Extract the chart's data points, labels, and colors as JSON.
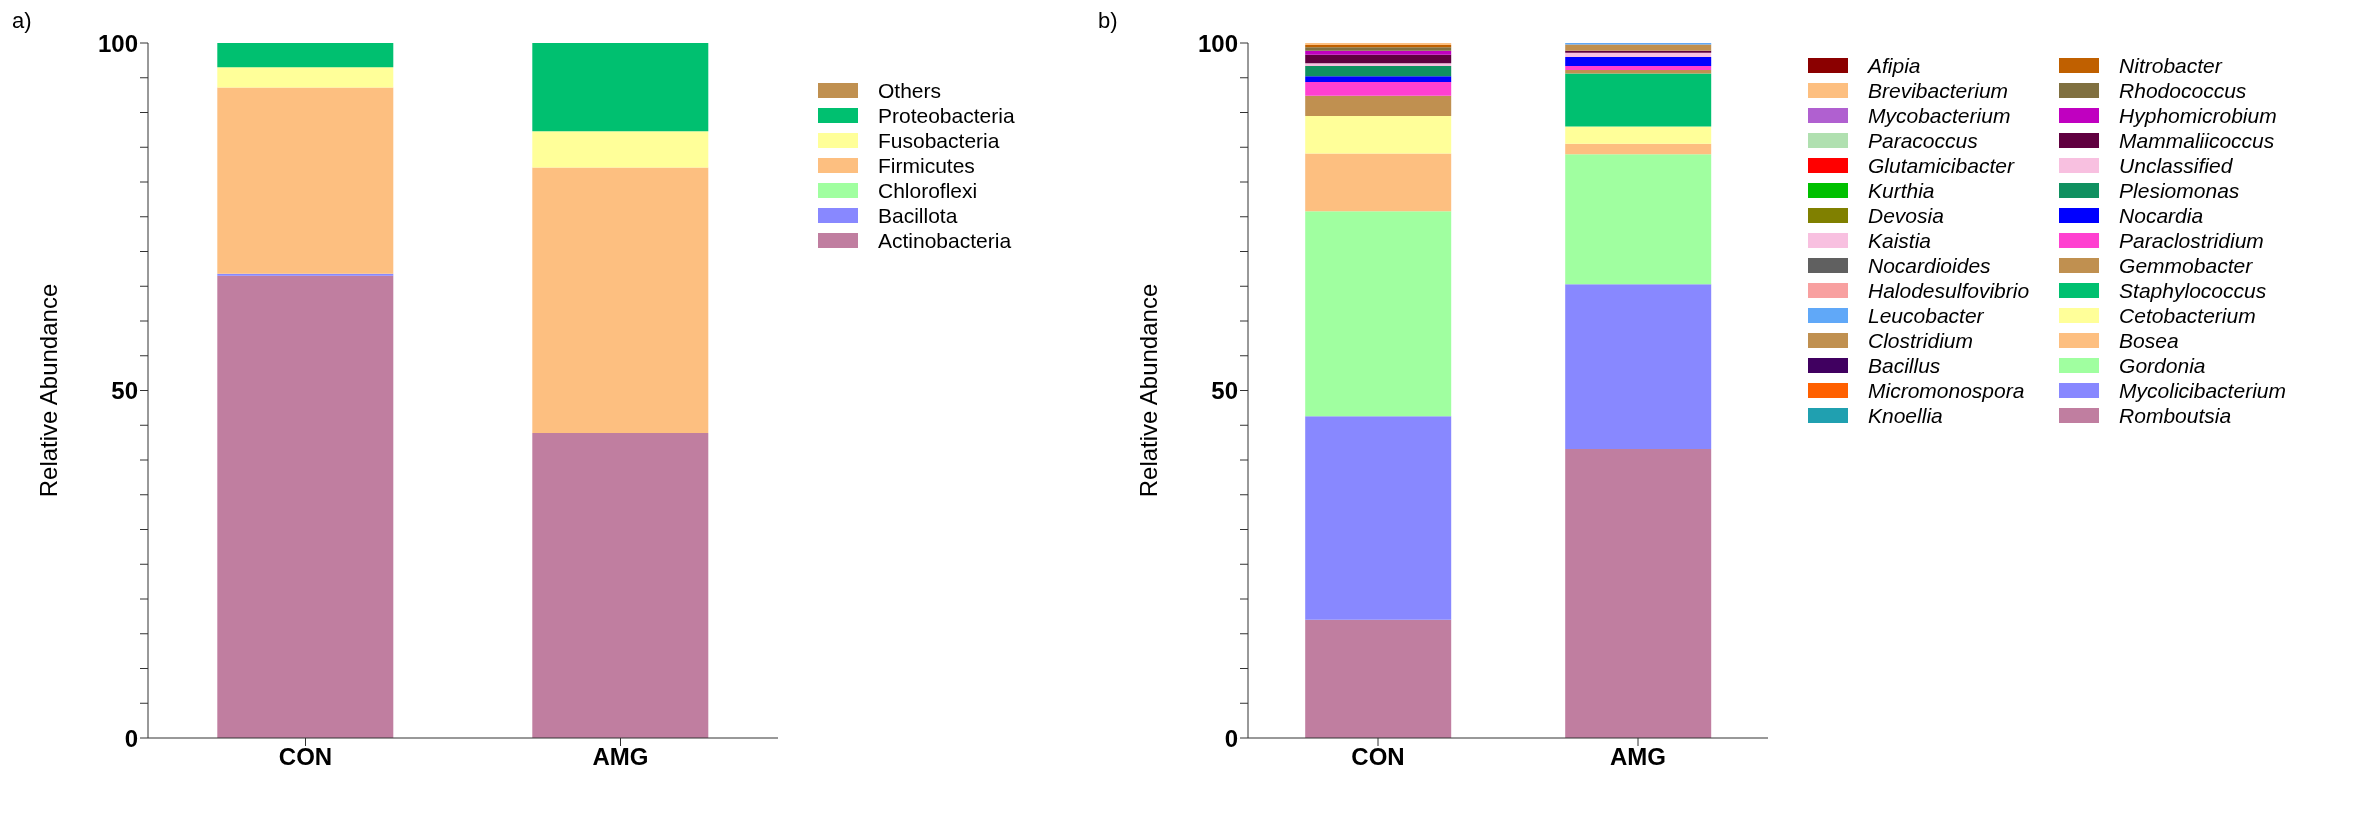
{
  "chart_data": [
    {
      "type": "bar",
      "stacked": true,
      "title": "a)",
      "ylabel": "Relative Abundance",
      "categories": [
        "CON",
        "AMG"
      ],
      "ylim": [
        0,
        100
      ],
      "legend": "right",
      "yticks": [
        0,
        {
          "value": 5,
          "label": null
        },
        {
          "value": 10,
          "label": null
        },
        {
          "value": 15,
          "label": null
        },
        {
          "value": 20,
          "label": null
        },
        {
          "value": 25,
          "label": null
        },
        {
          "value": 30,
          "label": null
        },
        {
          "value": 35,
          "label": null
        },
        {
          "value": 40,
          "label": null
        },
        {
          "value": 45,
          "label": null
        },
        50,
        {
          "value": 55,
          "label": null
        },
        {
          "value": 60,
          "label": null
        },
        {
          "value": 65,
          "label": null
        },
        {
          "value": 70,
          "label": null
        },
        {
          "value": 75,
          "label": null
        },
        {
          "value": 80,
          "label": null
        },
        {
          "value": 85,
          "label": null
        },
        {
          "value": 90,
          "label": null
        },
        {
          "value": 95,
          "label": null
        },
        100
      ],
      "series": [
        {
          "name": "Actinobacteria",
          "color": "#c07ea0",
          "values": [
            66.5,
            43.9
          ]
        },
        {
          "name": "Bacillota",
          "color": "#8888ff",
          "values": [
            0.3,
            0
          ]
        },
        {
          "name": "Chloroflexi",
          "color": "#a0ffa0",
          "values": [
            0,
            0
          ]
        },
        {
          "name": "Firmicutes",
          "color": "#fdbf80",
          "values": [
            26.8,
            38.2
          ]
        },
        {
          "name": "Fusobacteria",
          "color": "#ffff99",
          "values": [
            2.9,
            5.2
          ]
        },
        {
          "name": "Proteobacteria",
          "color": "#00c070",
          "values": [
            3.5,
            12.7
          ]
        },
        {
          "name": "Others",
          "color": "#c09050",
          "values": [
            0,
            0
          ]
        }
      ]
    },
    {
      "type": "bar",
      "stacked": true,
      "title": "b)",
      "ylabel": "Relative Abundance",
      "categories": [
        "CON",
        "AMG"
      ],
      "ylim": [
        0,
        100
      ],
      "legend": "right",
      "yticks": [
        0,
        {
          "value": 5,
          "label": null
        },
        {
          "value": 10,
          "label": null
        },
        {
          "value": 15,
          "label": null
        },
        {
          "value": 20,
          "label": null
        },
        {
          "value": 25,
          "label": null
        },
        {
          "value": 30,
          "label": null
        },
        {
          "value": 35,
          "label": null
        },
        {
          "value": 40,
          "label": null
        },
        {
          "value": 45,
          "label": null
        },
        50,
        {
          "value": 55,
          "label": null
        },
        {
          "value": 60,
          "label": null
        },
        {
          "value": 65,
          "label": null
        },
        {
          "value": 70,
          "label": null
        },
        {
          "value": 75,
          "label": null
        },
        {
          "value": 80,
          "label": null
        },
        {
          "value": 85,
          "label": null
        },
        {
          "value": 90,
          "label": null
        },
        {
          "value": 95,
          "label": null
        },
        100
      ],
      "series": [
        {
          "name": "Romboutsia",
          "color": "#c07ea0",
          "values": [
            17,
            41.6
          ]
        },
        {
          "name": "Mycolicibacterium",
          "color": "#8888ff",
          "values": [
            29.3,
            23.7
          ]
        },
        {
          "name": "Gordonia",
          "color": "#a0ffa0",
          "values": [
            29.5,
            18.7
          ]
        },
        {
          "name": "Bosea",
          "color": "#fdbf80",
          "values": [
            8.3,
            1.5
          ]
        },
        {
          "name": "Cetobacterium",
          "color": "#ffff99",
          "values": [
            5.4,
            2.5
          ]
        },
        {
          "name": "Staphylococcus",
          "color": "#00c070",
          "values": [
            0,
            7.6
          ]
        },
        {
          "name": "Gemmobacter",
          "color": "#c09050",
          "values": [
            2.9,
            0.5
          ]
        },
        {
          "name": "Paraclostridium",
          "color": "#ff40d0",
          "values": [
            2,
            0.6
          ]
        },
        {
          "name": "Nocardia",
          "color": "#0000ff",
          "values": [
            0.8,
            1.3
          ]
        },
        {
          "name": "Plesiomonas",
          "color": "#109060",
          "values": [
            1.5,
            0
          ]
        },
        {
          "name": "Unclassified",
          "color": "#f8c0e0",
          "values": [
            0.4,
            0.6
          ]
        },
        {
          "name": "Mammaliicoccus",
          "color": "#600040",
          "values": [
            1.2,
            0.3
          ]
        },
        {
          "name": "Hyphomicrobium",
          "color": "#c000c0",
          "values": [
            0.6,
            0
          ]
        },
        {
          "name": "Rhodococcus",
          "color": "#807040",
          "values": [
            0.5,
            0
          ]
        },
        {
          "name": "Nitrobacter",
          "color": "#c06000",
          "values": [
            0.3,
            0
          ]
        },
        {
          "name": "Knoellia",
          "color": "#20a0b0",
          "values": [
            0,
            0
          ]
        },
        {
          "name": "Micromonospora",
          "color": "#ff6000",
          "values": [
            0,
            0
          ]
        },
        {
          "name": "Bacillus",
          "color": "#400060",
          "values": [
            0,
            0
          ]
        },
        {
          "name": "Clostridium",
          "color": "#c09050",
          "values": [
            0,
            0.9
          ]
        },
        {
          "name": "Leucobacter",
          "color": "#60a8f8",
          "values": [
            0,
            0.2
          ]
        },
        {
          "name": "Halodesulfovibrio",
          "color": "#f8a0a0",
          "values": [
            0,
            0
          ]
        },
        {
          "name": "Nocardioides",
          "color": "#606060",
          "values": [
            0,
            0
          ]
        },
        {
          "name": "Kaistia",
          "color": "#f8c0e0",
          "values": [
            0,
            0
          ]
        },
        {
          "name": "Devosia",
          "color": "#808000",
          "values": [
            0,
            0
          ]
        },
        {
          "name": "Kurthia",
          "color": "#00c000",
          "values": [
            0,
            0
          ]
        },
        {
          "name": "Glutamicibacter",
          "color": "#ff0000",
          "values": [
            0,
            0
          ]
        },
        {
          "name": "Paracoccus",
          "color": "#b0e0b0",
          "values": [
            0,
            0
          ]
        },
        {
          "name": "Mycobacterium",
          "color": "#b060d0",
          "values": [
            0,
            0
          ]
        },
        {
          "name": "Brevibacterium",
          "color": "#fdbf80",
          "values": [
            0.3,
            0
          ]
        },
        {
          "name": "Afipia",
          "color": "#8b0000",
          "values": [
            0,
            0
          ]
        }
      ]
    }
  ]
}
